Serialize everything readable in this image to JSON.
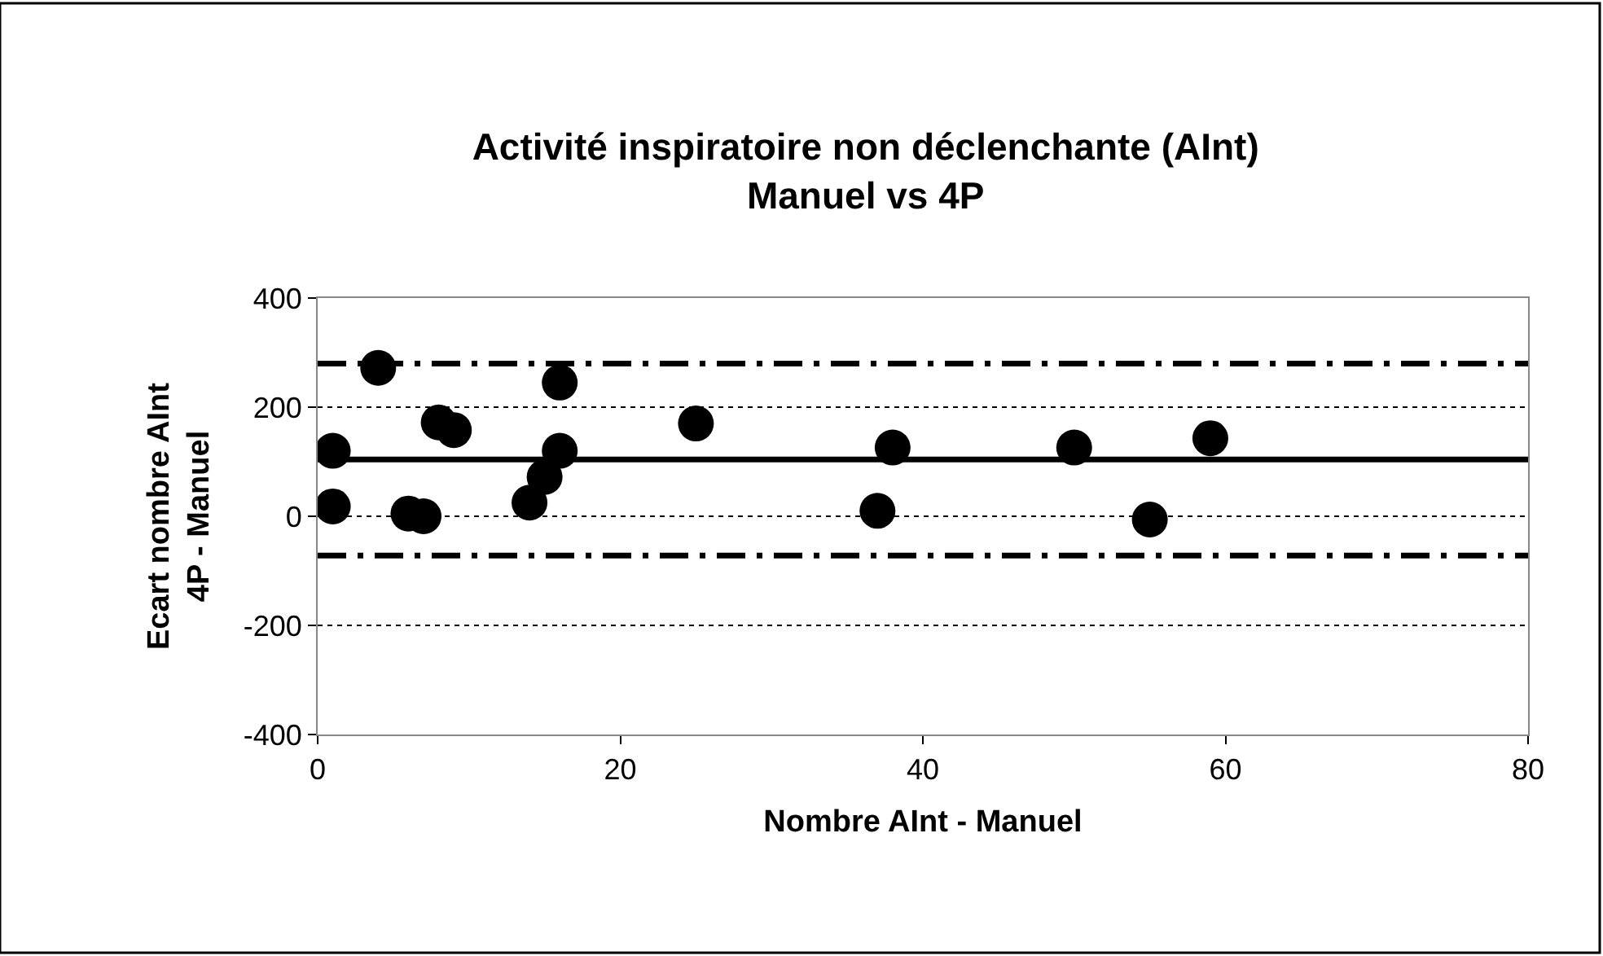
{
  "chart_data": {
    "type": "scatter",
    "title": "Activité inspiratoire non déclenchante (AInt)\nManuel vs 4P",
    "xlabel": "Nombre AInt - Manuel",
    "ylabel": "Ecart nombre AInt\n4P - Manuel",
    "x": [
      1,
      1,
      4,
      6,
      7,
      8,
      9,
      14,
      15,
      16,
      16,
      25,
      37,
      38,
      50,
      55,
      59
    ],
    "values": [
      120,
      18,
      272,
      5,
      0,
      172,
      158,
      25,
      72,
      245,
      120,
      170,
      10,
      126,
      126,
      -6,
      143
    ],
    "color": "#000000",
    "marker": "circle",
    "xlim": [
      0,
      80
    ],
    "xticks": [
      0,
      20,
      40,
      60,
      80
    ],
    "ylim": [
      -400,
      400
    ],
    "yticks": [
      -400,
      -200,
      0,
      200,
      400
    ],
    "grid": "y",
    "legend": false,
    "ref_lines": [
      {
        "axis": "y",
        "value": 280,
        "line_style": "dashdot",
        "color": "#000000"
      },
      {
        "axis": "y",
        "value": 104,
        "line_style": "solid",
        "color": "#000000"
      },
      {
        "axis": "y",
        "value": -72,
        "line_style": "dashdot",
        "color": "#000000"
      }
    ]
  }
}
